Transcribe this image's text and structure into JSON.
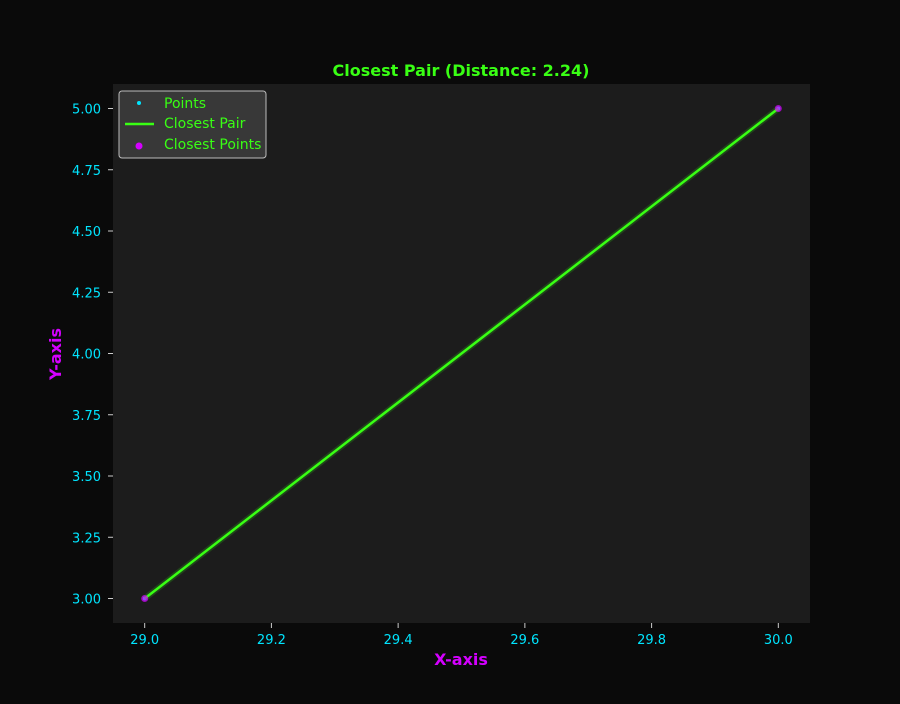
{
  "chart_data": {
    "type": "scatter",
    "title": "Closest Pair (Distance: 2.24)",
    "xlabel": "X-axis",
    "ylabel": "Y-axis",
    "xlim": [
      28.95,
      30.05
    ],
    "ylim": [
      2.9,
      5.1
    ],
    "x_ticks": [
      29.0,
      29.2,
      29.4,
      29.6,
      29.8,
      30.0
    ],
    "y_ticks": [
      3.0,
      3.25,
      3.5,
      3.75,
      4.0,
      4.25,
      4.5,
      4.75,
      5.0
    ],
    "x_tick_labels": [
      "29.0",
      "29.2",
      "29.4",
      "29.6",
      "29.8",
      "30.0"
    ],
    "y_tick_labels": [
      "3.00",
      "3.25",
      "3.50",
      "3.75",
      "4.00",
      "4.25",
      "4.50",
      "4.75",
      "5.00"
    ],
    "grid": false,
    "legend_position": "top-left",
    "series": [
      {
        "name": "Points",
        "kind": "scatter",
        "color": "#00e5ff",
        "x": [
          29.0,
          30.0
        ],
        "y": [
          3.0,
          5.0
        ]
      },
      {
        "name": "Closest Pair",
        "kind": "line",
        "color": "#39ff14",
        "x": [
          29.0,
          30.0
        ],
        "y": [
          3.0,
          5.0
        ]
      },
      {
        "name": "Closest Points",
        "kind": "scatter",
        "color": "#d400ff",
        "x": [
          29.0,
          30.0
        ],
        "y": [
          3.0,
          5.0
        ]
      }
    ],
    "colors": {
      "figure_bg": "#0a0a0a",
      "axes_bg": "#1c1c1c",
      "title": "#39ff14",
      "axis_label": "#d400ff",
      "tick_label": "#00e5ff",
      "legend_text": "#39ff14"
    }
  }
}
